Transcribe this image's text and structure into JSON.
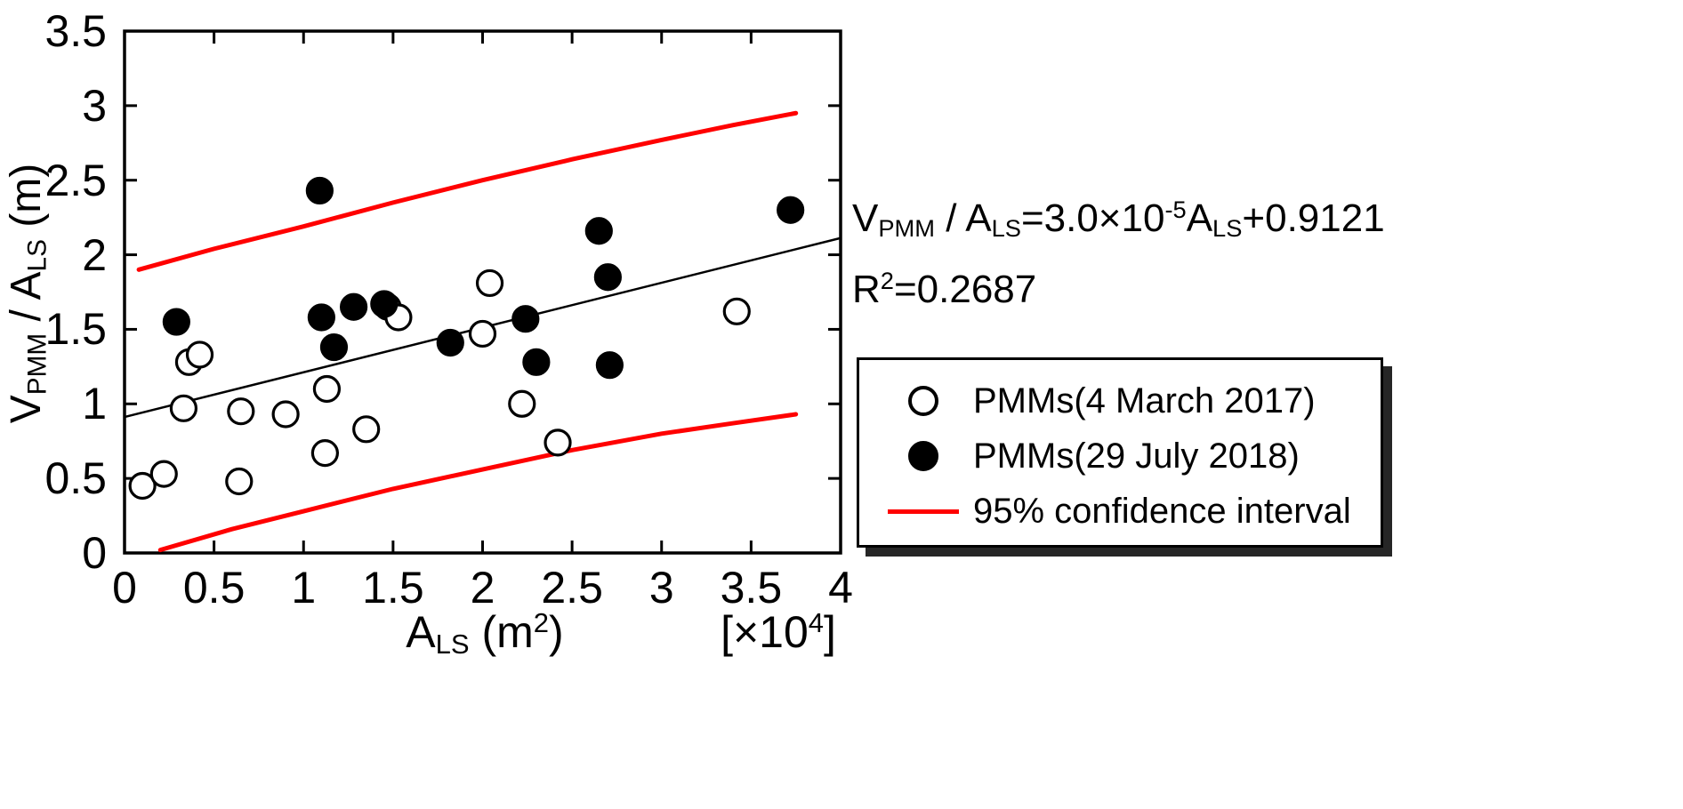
{
  "chart_data": {
    "type": "scatter",
    "title": "",
    "xlabel": "A_LS (m^2)",
    "x_unit_label": "[x10^4]",
    "ylabel": "V_PMM / A_LS (m)",
    "xlim": [
      0,
      4
    ],
    "ylim": [
      0,
      3.5
    ],
    "xticks": [
      0,
      0.5,
      1,
      1.5,
      2,
      2.5,
      3,
      3.5,
      4
    ],
    "yticks": [
      0,
      0.5,
      1,
      1.5,
      2,
      2.5,
      3,
      3.5
    ],
    "grid": false,
    "legend_position": "right-outside",
    "series": [
      {
        "name": "PMMs(4 March 2017)",
        "marker": "open-circle",
        "color": "#000000",
        "points": [
          [
            0.1,
            0.45
          ],
          [
            0.22,
            0.53
          ],
          [
            0.33,
            0.97
          ],
          [
            0.36,
            1.28
          ],
          [
            0.42,
            1.33
          ],
          [
            0.64,
            0.48
          ],
          [
            0.65,
            0.95
          ],
          [
            0.9,
            0.93
          ],
          [
            1.12,
            0.67
          ],
          [
            1.13,
            1.1
          ],
          [
            1.35,
            0.83
          ],
          [
            1.47,
            1.65
          ],
          [
            1.53,
            1.58
          ],
          [
            2.0,
            1.47
          ],
          [
            2.04,
            1.81
          ],
          [
            2.22,
            1.0
          ],
          [
            2.42,
            0.74
          ],
          [
            3.42,
            1.62
          ]
        ]
      },
      {
        "name": "PMMs(29 July 2018)",
        "marker": "filled-circle",
        "color": "#000000",
        "points": [
          [
            0.29,
            1.55
          ],
          [
            1.09,
            2.43
          ],
          [
            1.1,
            1.58
          ],
          [
            1.17,
            1.38
          ],
          [
            1.28,
            1.65
          ],
          [
            1.45,
            1.67
          ],
          [
            1.82,
            1.41
          ],
          [
            2.24,
            1.57
          ],
          [
            2.3,
            1.28
          ],
          [
            2.65,
            2.16
          ],
          [
            2.7,
            1.85
          ],
          [
            2.71,
            1.26
          ],
          [
            3.72,
            2.3
          ]
        ]
      }
    ],
    "fit_line": {
      "equation": "V_PMM / A_LS = 3.0x10^-5 A_LS + 0.9121",
      "r_squared": 0.2687,
      "slope_per_1e4_m2": 0.3,
      "intercept": 0.9121,
      "x_range": [
        0,
        4
      ],
      "color": "#000000"
    },
    "confidence_interval": {
      "label": "95% confidence interval",
      "color": "#ff0000",
      "upper": [
        [
          0.08,
          1.9
        ],
        [
          0.5,
          2.04
        ],
        [
          1.0,
          2.19
        ],
        [
          1.5,
          2.35
        ],
        [
          2.0,
          2.5
        ],
        [
          2.5,
          2.64
        ],
        [
          3.0,
          2.77
        ],
        [
          3.4,
          2.87
        ],
        [
          3.75,
          2.95
        ]
      ],
      "lower": [
        [
          0.2,
          0.02
        ],
        [
          0.6,
          0.16
        ],
        [
          1.0,
          0.28
        ],
        [
          1.5,
          0.43
        ],
        [
          2.0,
          0.56
        ],
        [
          2.5,
          0.69
        ],
        [
          3.0,
          0.8
        ],
        [
          3.4,
          0.87
        ],
        [
          3.75,
          0.93
        ]
      ]
    },
    "colors": {
      "axis": "#000000",
      "marker": "#000000",
      "confidence": "#ff0000"
    }
  },
  "labels": {
    "y_title": {
      "p1": "V",
      "sub1": "PMM",
      "p2": " / A",
      "sub2": "LS",
      "p3": " (m)"
    },
    "x_title": {
      "p1": "A",
      "sub1": "LS",
      "p2": " (m",
      "sup1": "2",
      "p3": ")"
    },
    "x_unit": {
      "p1": "[×10",
      "sup1": "4",
      "p2": "]"
    }
  },
  "annotation": {
    "line1": {
      "p1": "V",
      "sub1": "PMM",
      "p2": " / A",
      "sub2": "LS",
      "p3": "=3.0×10",
      "sup1": "-5",
      "p4": "A",
      "sub3": "LS",
      "p5": "+0.9121"
    },
    "line2": {
      "p1": "R",
      "sup1": "2",
      "p2": "=0.2687"
    }
  },
  "legend": {
    "items": [
      {
        "label": "PMMs(4 March 2017)",
        "marker": "open-circle"
      },
      {
        "label": "PMMs(29 July 2018)",
        "marker": "filled-circle"
      },
      {
        "label": "95% confidence interval",
        "marker": "red-line"
      }
    ]
  }
}
